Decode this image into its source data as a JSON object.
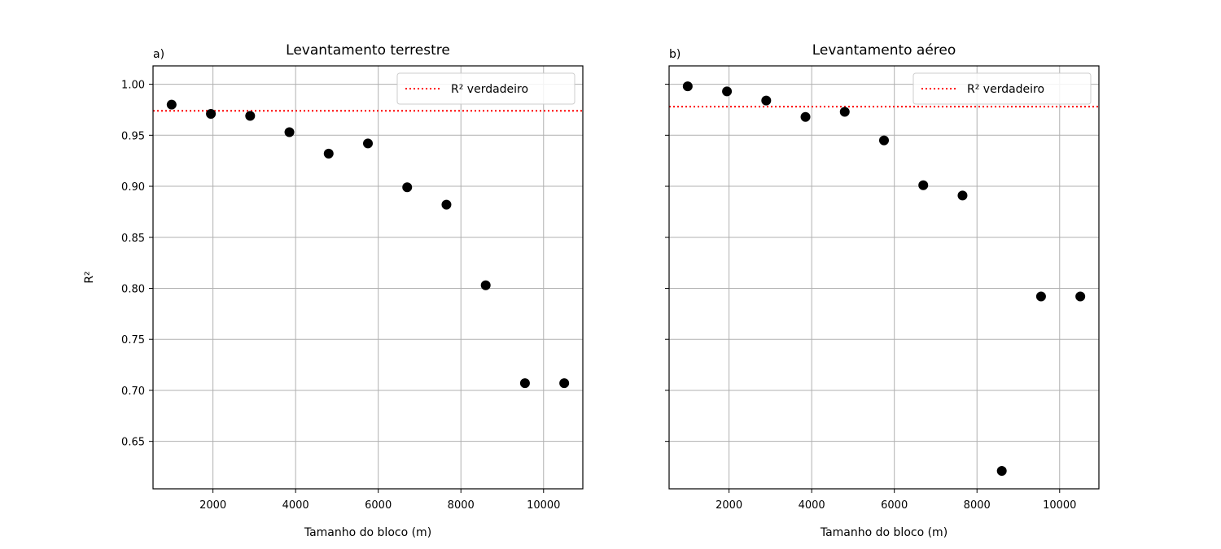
{
  "chart_data": [
    {
      "type": "scatter",
      "panel_letter": "a)",
      "title": "Levantamento terrestre",
      "xlabel": "Tamanho do bloco (m)",
      "ylabel": "R²",
      "xlim": [
        550,
        10950
      ],
      "ylim": [
        0.6035,
        1.018
      ],
      "xticks": [
        2000,
        4000,
        6000,
        8000,
        10000
      ],
      "yticks": [
        0.65,
        0.7,
        0.75,
        0.8,
        0.85,
        0.9,
        0.95,
        1.0
      ],
      "ytick_labels_shown": true,
      "grid": true,
      "legend_position": "upper right",
      "series": [
        {
          "color": "#000000",
          "x": [
            1000,
            1950,
            2900,
            3850,
            4800,
            5750,
            6700,
            7650,
            8600,
            9550,
            10500
          ],
          "y": [
            0.98,
            0.971,
            0.969,
            0.953,
            0.932,
            0.942,
            0.899,
            0.882,
            0.803,
            0.707,
            0.707
          ]
        }
      ],
      "reference_line": {
        "name": "R² verdadeiro",
        "y": 0.974,
        "color": "#ff0000",
        "style": "dotted"
      }
    },
    {
      "type": "scatter",
      "panel_letter": "b)",
      "title": "Levantamento aéreo",
      "xlabel": "Tamanho do bloco (m)",
      "ylabel": "",
      "xlim": [
        550,
        10950
      ],
      "ylim": [
        0.6035,
        1.018
      ],
      "xticks": [
        2000,
        4000,
        6000,
        8000,
        10000
      ],
      "yticks": [
        0.65,
        0.7,
        0.75,
        0.8,
        0.85,
        0.9,
        0.95,
        1.0
      ],
      "ytick_labels_shown": false,
      "grid": true,
      "legend_position": "upper right",
      "series": [
        {
          "color": "#000000",
          "x": [
            1000,
            1950,
            2900,
            3850,
            4800,
            5750,
            6700,
            7650,
            8600,
            9550,
            10500
          ],
          "y": [
            0.998,
            0.993,
            0.984,
            0.968,
            0.973,
            0.945,
            0.901,
            0.891,
            0.621,
            0.792,
            0.792
          ]
        }
      ],
      "reference_line": {
        "name": "R² verdadeiro",
        "y": 0.978,
        "color": "#ff0000",
        "style": "dotted"
      }
    }
  ]
}
